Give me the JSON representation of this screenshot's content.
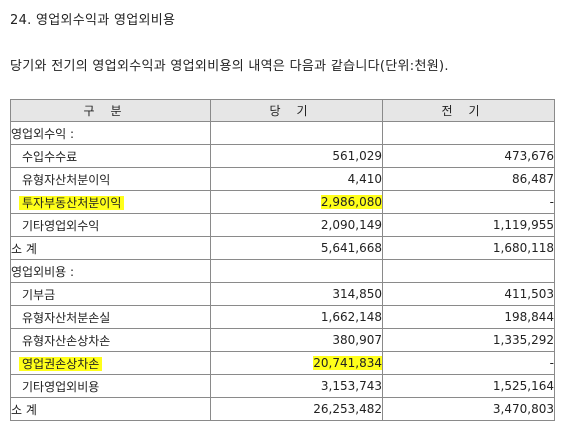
{
  "section_title": "24. 영업외수익과 영업외비용",
  "intro": "당기와 전기의 영업외수익과 영업외비용의 내역은 다음과 같습니다(단위:천원).",
  "table": {
    "headers": [
      "구분",
      "당기",
      "전기"
    ],
    "income_group_label": "영업외수익 :",
    "income_rows": [
      {
        "label": "수입수수료",
        "current": "561,029",
        "prior": "473,676"
      },
      {
        "label": "유형자산처분이익",
        "current": "4,410",
        "prior": "86,487"
      },
      {
        "label": "투자부동산처분이익",
        "current": "2,986,080",
        "prior": "-"
      },
      {
        "label": "기타영업외수익",
        "current": "2,090,149",
        "prior": "1,119,955"
      }
    ],
    "income_total": {
      "label": "소 계",
      "current": "5,641,668",
      "prior": "1,680,118"
    },
    "expense_group_label": "영업외비용 :",
    "expense_rows": [
      {
        "label": "기부금",
        "current": "314,850",
        "prior": "411,503"
      },
      {
        "label": "유형자산처분손실",
        "current": "1,662,148",
        "prior": "198,844"
      },
      {
        "label": "유형자산손상차손",
        "current": "380,907",
        "prior": "1,335,292"
      },
      {
        "label": "영업권손상차손",
        "current": "20,741,834",
        "prior": "-"
      },
      {
        "label": "기타영업외비용",
        "current": "3,153,743",
        "prior": "1,525,164"
      }
    ],
    "expense_total": {
      "label": "소 계",
      "current": "26,253,482",
      "prior": "3,470,803"
    }
  },
  "colors": {
    "highlight": "#ffff1a",
    "header_bg": "#e6e6e6",
    "border": "#8a8a8a"
  }
}
